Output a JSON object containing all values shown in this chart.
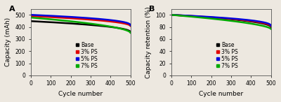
{
  "panel_A": {
    "label": "A",
    "xlabel": "Cycle number",
    "ylabel": "Capacity (mAh)",
    "xlim": [
      0,
      500
    ],
    "ylim": [
      0,
      550
    ],
    "yticks": [
      0,
      100,
      200,
      300,
      400,
      500
    ],
    "xticks": [
      0,
      100,
      200,
      300,
      400,
      500
    ],
    "series": [
      {
        "label": "Base",
        "color": "#000000",
        "start": 448,
        "end": 355,
        "shape": 0.45
      },
      {
        "label": "3% PS",
        "color": "#e00000",
        "start": 490,
        "end": 406,
        "shape": 0.48
      },
      {
        "label": "5% PS",
        "color": "#0000dd",
        "start": 500,
        "end": 412,
        "shape": 0.42
      },
      {
        "label": "7% PS",
        "color": "#00aa00",
        "start": 478,
        "end": 350,
        "shape": 0.55
      }
    ]
  },
  "panel_B": {
    "label": "B",
    "xlabel": "Cycle number",
    "ylabel": "Capacity retention (%)",
    "xlim": [
      0,
      500
    ],
    "ylim": [
      0,
      110
    ],
    "yticks": [
      0,
      20,
      40,
      60,
      80,
      100
    ],
    "xticks": [
      0,
      100,
      200,
      300,
      400,
      500
    ],
    "series": [
      {
        "label": "Base",
        "color": "#000000",
        "start": 100,
        "end": 79.5,
        "shape": 0.48
      },
      {
        "label": "3% PS",
        "color": "#e00000",
        "start": 100,
        "end": 80.5,
        "shape": 0.46
      },
      {
        "label": "5% PS",
        "color": "#0000dd",
        "start": 100,
        "end": 81.5,
        "shape": 0.42
      },
      {
        "label": "7% PS",
        "color": "#00aa00",
        "start": 100,
        "end": 76.5,
        "shape": 0.6
      }
    ]
  },
  "bg_color": "#ede8e0",
  "linewidth": 1.8,
  "fontsize_label": 6.5,
  "fontsize_tick": 5.5,
  "fontsize_legend": 5.5,
  "fontsize_panel_label": 8
}
